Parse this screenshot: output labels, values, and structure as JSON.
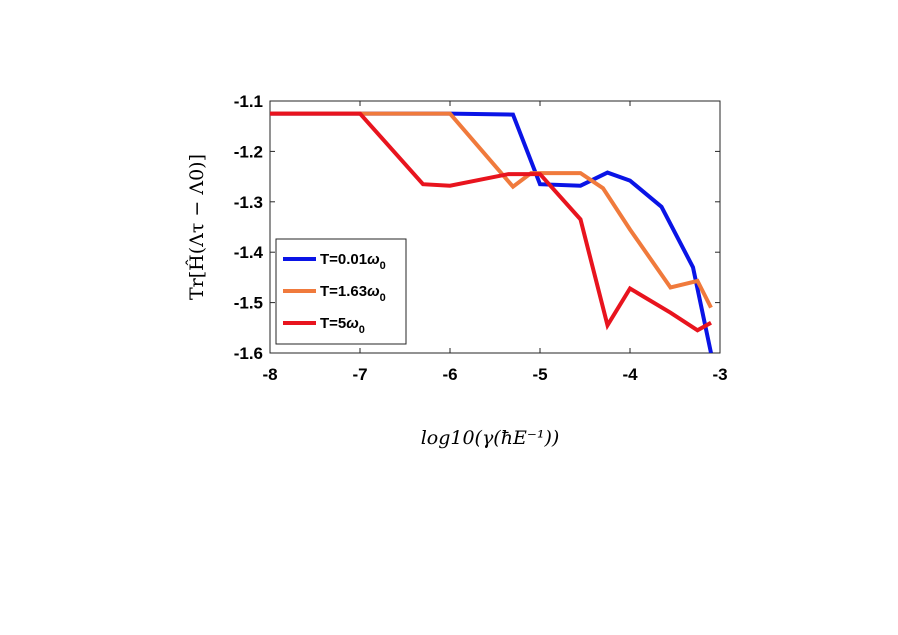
{
  "chart_data": {
    "type": "line",
    "xlabel": "log10(γ(ħE⁻¹))",
    "ylabel": "Tr[Ĥ(Λτ − Λ0)]",
    "xlim": [
      -8,
      -3
    ],
    "ylim": [
      -1.6,
      -1.1
    ],
    "x_ticks": [
      -8,
      -7,
      -6,
      -5,
      -4,
      -3
    ],
    "y_ticks": [
      -1.1,
      -1.2,
      -1.3,
      -1.4,
      -1.5,
      -1.6
    ],
    "x_tick_labels": [
      "-8",
      "-7",
      "-6",
      "-5",
      "-4",
      "-3"
    ],
    "y_tick_labels": [
      "-1.1",
      "-1.2",
      "-1.3",
      "-1.4",
      "-1.5",
      "-1.6"
    ],
    "grid": false,
    "legend_position": "bottom-left",
    "series": [
      {
        "name": "T=0.01ω0",
        "legend_main": "T=0.01",
        "legend_omega": "ω",
        "legend_sub": "0",
        "color": "#0a14e6",
        "x": [
          -8,
          -7,
          -6,
          -5.3,
          -5,
          -4.55,
          -4.25,
          -4.0,
          -3.65,
          -3.3,
          -3.1
        ],
        "y": [
          -1.125,
          -1.125,
          -1.125,
          -1.127,
          -1.265,
          -1.268,
          -1.242,
          -1.258,
          -1.31,
          -1.43,
          -1.6
        ]
      },
      {
        "name": "T=1.63ω0",
        "legend_main": "T=1.63",
        "legend_omega": "ω",
        "legend_sub": "0",
        "color": "#f07a3c",
        "x": [
          -8,
          -7,
          -6,
          -5.3,
          -5.1,
          -4.55,
          -4.3,
          -4.0,
          -3.55,
          -3.25,
          -3.1
        ],
        "y": [
          -1.125,
          -1.125,
          -1.125,
          -1.27,
          -1.243,
          -1.243,
          -1.273,
          -1.355,
          -1.47,
          -1.457,
          -1.51
        ]
      },
      {
        "name": "T=5ω0",
        "legend_main": "T=5",
        "legend_omega": "ω",
        "legend_sub": "0",
        "color": "#e8141e",
        "x": [
          -8,
          -7,
          -6.3,
          -6,
          -5.35,
          -5,
          -4.55,
          -4.25,
          -4.0,
          -3.55,
          -3.25,
          -3.1
        ],
        "y": [
          -1.125,
          -1.125,
          -1.265,
          -1.268,
          -1.245,
          -1.245,
          -1.335,
          -1.545,
          -1.472,
          -1.52,
          -1.555,
          -1.54
        ]
      }
    ]
  }
}
